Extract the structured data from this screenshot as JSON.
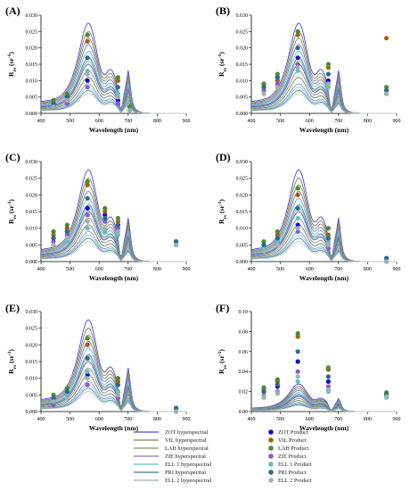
{
  "chart_data": {
    "type": "line",
    "legend": {
      "placement": "bottom",
      "entries": [
        {
          "label": "ZOT hyperspectral",
          "color": "#4a4ad0",
          "kind": "line"
        },
        {
          "label": "VIL hyperspectral",
          "color": "#8a7a60",
          "kind": "line"
        },
        {
          "label": "LAB hyperspectral",
          "color": "#7a9a60",
          "kind": "line"
        },
        {
          "label": "ZIE hyperspectral",
          "color": "#8a6ad0",
          "kind": "line"
        },
        {
          "label": "ELL 1 hyperspectral",
          "color": "#60c0c0",
          "kind": "line"
        },
        {
          "label": "PRI hyperspectral",
          "color": "#3a7a9a",
          "kind": "line"
        },
        {
          "label": "ELL 2 hyperspectral",
          "color": "#a0b0b0",
          "kind": "line"
        },
        {
          "label": "ZOT Product",
          "color": "#1010d0",
          "kind": "dot"
        },
        {
          "label": "VIL Product",
          "color": "#a06010",
          "kind": "dot"
        },
        {
          "label": "LAB Product",
          "color": "#4a8a30",
          "kind": "dot"
        },
        {
          "label": "ZIE Product",
          "color": "#8a5ad0",
          "kind": "dot"
        },
        {
          "label": "ELL 1 Product",
          "color": "#60c0c0",
          "kind": "dot"
        },
        {
          "label": "PRI Product",
          "color": "#2a6a8a",
          "kind": "dot"
        },
        {
          "label": "ELL 2 Product",
          "color": "#a0b0b0",
          "kind": "dot"
        }
      ]
    },
    "panels": [
      {
        "label": "(A)",
        "xlabel": "Wavelength (nm)",
        "ylabel": "Rrs (sr-1)",
        "ylabel_main": "R",
        "ylabel_sub": "rs",
        "ylabel_unit": " (sr",
        "ylabel_exp": "-1",
        "ylabel_close": ")",
        "xlim": [
          400,
          900
        ],
        "ylim": [
          0,
          0.03
        ],
        "xticks": [
          "400",
          "500",
          "600",
          "700",
          "800",
          "900"
        ],
        "yticks": [
          "0.000",
          "0.005",
          "0.010",
          "0.015",
          "0.020",
          "0.025",
          "0.030"
        ],
        "band_x": [
          443,
          490,
          560,
          665,
          705
        ],
        "points": [
          [
            0.002,
            0.003,
            0.01,
            0.004,
            0.001
          ],
          [
            0.003,
            0.005,
            0.022,
            0.01,
            0.002
          ],
          [
            0.004,
            0.006,
            0.024,
            0.011,
            0.002
          ],
          [
            0.002,
            0.003,
            0.008,
            0.003,
            0.001
          ],
          [
            0.003,
            0.004,
            0.013,
            0.006,
            0.001
          ],
          [
            0.003,
            0.005,
            0.017,
            0.008,
            0.001
          ],
          [
            0.002,
            0.004,
            0.012,
            0.005,
            0.001
          ]
        ]
      },
      {
        "label": "(B)",
        "xlabel": "Wavelength (nm)",
        "ylabel": "Rrs (sr-1)",
        "ylabel_main": "R",
        "ylabel_sub": "rs",
        "ylabel_unit": " (sr",
        "ylabel_exp": "-1",
        "ylabel_close": ")",
        "xlim": [
          400,
          900
        ],
        "ylim": [
          0,
          0.03
        ],
        "xticks": [
          "400",
          "500",
          "600",
          "700",
          "800",
          "900"
        ],
        "yticks": [
          "0.000",
          "0.005",
          "0.010",
          "0.015",
          "0.020",
          "0.025",
          "0.030"
        ],
        "band_x": [
          443,
          490,
          560,
          665,
          865
        ],
        "points": [
          [
            0.009,
            0.011,
            0.017,
            0.01,
            0.007
          ],
          [
            0.008,
            0.01,
            0.024,
            0.014,
            0.023
          ],
          [
            0.009,
            0.012,
            0.025,
            0.015,
            0.008
          ],
          [
            0.007,
            0.009,
            0.015,
            0.009,
            0.006
          ],
          [
            0.006,
            0.008,
            0.013,
            0.008,
            0.007
          ],
          [
            0.008,
            0.011,
            0.02,
            0.012,
            0.007
          ],
          [
            0.006,
            0.008,
            0.014,
            0.009,
            0.006
          ]
        ]
      },
      {
        "label": "(C)",
        "xlabel": "Wavelength (nm)",
        "ylabel": "Rrs (sr-1)",
        "ylabel_main": "R",
        "ylabel_sub": "rs",
        "ylabel_unit": " (sr",
        "ylabel_exp": "-1",
        "ylabel_close": ")",
        "xlim": [
          400,
          900
        ],
        "ylim": [
          0,
          0.03
        ],
        "xticks": [
          "400",
          "500",
          "600",
          "700",
          "800",
          "900"
        ],
        "yticks": [
          "0.000",
          "0.005",
          "0.010",
          "0.015",
          "0.020",
          "0.025",
          "0.030"
        ],
        "band_x": [
          443,
          490,
          560,
          620,
          665,
          865
        ],
        "points": [
          [
            0.007,
            0.009,
            0.016,
            0.014,
            0.011,
            0.005
          ],
          [
            0.008,
            0.01,
            0.023,
            0.015,
            0.012,
            0.006
          ],
          [
            0.009,
            0.011,
            0.024,
            0.016,
            0.013,
            0.006
          ],
          [
            0.006,
            0.008,
            0.014,
            0.012,
            0.01,
            0.005
          ],
          [
            0.005,
            0.006,
            0.01,
            0.009,
            0.008,
            0.005
          ],
          [
            0.007,
            0.009,
            0.019,
            0.013,
            0.011,
            0.006
          ],
          [
            0.005,
            0.007,
            0.012,
            0.01,
            0.009,
            0.005
          ]
        ]
      },
      {
        "label": "(D)",
        "xlabel": "Wavelength (nm)",
        "ylabel": "Rrs (sr-1)",
        "ylabel_main": "R",
        "ylabel_sub": "rs",
        "ylabel_unit": " (sr",
        "ylabel_exp": "-1",
        "ylabel_close": ")",
        "xlim": [
          400,
          900
        ],
        "ylim": [
          0,
          0.03
        ],
        "xticks": [
          "400",
          "500",
          "600",
          "700",
          "800",
          "900"
        ],
        "yticks": [
          "0.000",
          "0.005",
          "0.010",
          "0.015",
          "0.020",
          "0.025",
          "0.030"
        ],
        "band_x": [
          443,
          490,
          560,
          665,
          865
        ],
        "points": [
          [
            0.004,
            0.006,
            0.011,
            0.005,
            0.001
          ],
          [
            0.005,
            0.008,
            0.02,
            0.008,
            0.001
          ],
          [
            0.006,
            0.009,
            0.022,
            0.01,
            0.001
          ],
          [
            0.003,
            0.005,
            0.009,
            0.004,
            0.0
          ],
          [
            0.004,
            0.006,
            0.013,
            0.006,
            0.001
          ],
          [
            0.005,
            0.007,
            0.016,
            0.007,
            0.001
          ],
          [
            0.003,
            0.005,
            0.01,
            0.005,
            0.0
          ]
        ]
      },
      {
        "label": "(E)",
        "xlabel": "Wavelength (nm)",
        "ylabel": "Rrs (sr-1)",
        "ylabel_main": "R",
        "ylabel_sub": "rs",
        "ylabel_unit": " (sr",
        "ylabel_exp": "-1",
        "ylabel_close": ")",
        "xlim": [
          400,
          900
        ],
        "ylim": [
          0,
          0.03
        ],
        "xticks": [
          "400",
          "500",
          "600",
          "700",
          "800",
          "900"
        ],
        "yticks": [
          "0.000",
          "0.005",
          "0.010",
          "0.015",
          "0.020",
          "0.025",
          "0.030"
        ],
        "band_x": [
          443,
          490,
          560,
          665,
          865
        ],
        "points": [
          [
            0.003,
            0.005,
            0.011,
            0.006,
            0.001
          ],
          [
            0.004,
            0.006,
            0.02,
            0.009,
            0.001
          ],
          [
            0.005,
            0.007,
            0.022,
            0.01,
            0.001
          ],
          [
            0.002,
            0.004,
            0.008,
            0.004,
            0.0
          ],
          [
            0.003,
            0.005,
            0.012,
            0.006,
            0.0
          ],
          [
            0.004,
            0.006,
            0.016,
            0.008,
            0.001
          ],
          [
            0.003,
            0.004,
            0.01,
            0.005,
            0.0
          ]
        ]
      },
      {
        "label": "(F)",
        "xlabel": "Wavelength (nm)",
        "ylabel": "Rrs (sr-1)",
        "ylabel_main": "R",
        "ylabel_sub": "rs",
        "ylabel_unit": " (sr",
        "ylabel_exp": "-1",
        "ylabel_close": ")",
        "xlim": [
          400,
          900
        ],
        "ylim": [
          0,
          0.1
        ],
        "xticks": [
          "400",
          "500",
          "600",
          "700",
          "800",
          "900"
        ],
        "yticks": [
          "0.00",
          "0.02",
          "0.04",
          "0.06",
          "0.08",
          "0.10"
        ],
        "band_x": [
          443,
          490,
          560,
          665,
          865
        ],
        "points": [
          [
            0.02,
            0.025,
            0.05,
            0.03,
            0.016
          ],
          [
            0.022,
            0.03,
            0.075,
            0.042,
            0.018
          ],
          [
            0.024,
            0.032,
            0.078,
            0.044,
            0.019
          ],
          [
            0.016,
            0.02,
            0.04,
            0.025,
            0.015
          ],
          [
            0.014,
            0.018,
            0.03,
            0.02,
            0.014
          ],
          [
            0.02,
            0.027,
            0.06,
            0.035,
            0.017
          ],
          [
            0.015,
            0.019,
            0.035,
            0.022,
            0.015
          ]
        ]
      }
    ],
    "hyperspectral_peak_scale": [
      0.0275,
      0.025,
      0.023,
      0.021,
      0.019,
      0.017,
      0.016,
      0.015,
      0.013,
      0.011,
      0.009,
      0.008,
      0.007,
      0.006
    ],
    "hyperspectral_line_colors": [
      "#4a4ad0",
      "#8a7a60",
      "#7a9a60",
      "#8a6ad0",
      "#60c0c0",
      "#3a7a9a",
      "#a0b0b0",
      "#5a5ab0",
      "#909090",
      "#6a8a50",
      "#9a8ae0",
      "#80d0d0",
      "#4a8aaa",
      "#c0c8c8"
    ]
  }
}
